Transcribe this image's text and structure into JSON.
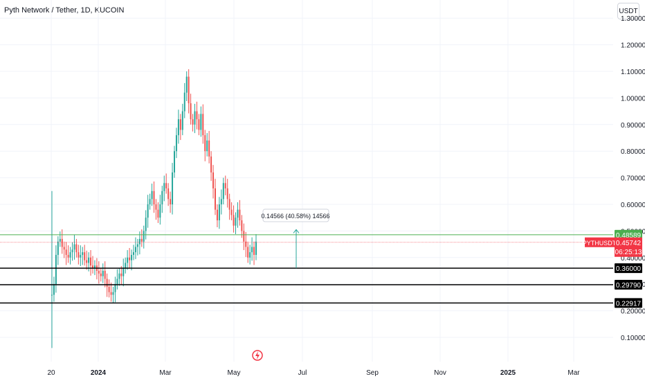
{
  "header": {
    "title": "Pyth Network / Tether, 1D, KUCOIN",
    "currency_button": "USDT"
  },
  "chart_data": {
    "type": "candlestick",
    "symbol": "PYTHUSDT",
    "y_axis_ticks": [
      0.1,
      0.2,
      0.3,
      0.4,
      0.5,
      0.6,
      0.7,
      0.8,
      0.9,
      1.0,
      1.1,
      1.2,
      1.3
    ],
    "y_axis_tick_labels": [
      "0.10000",
      "0.20000",
      "0.30000",
      "0.40000",
      "0.50000",
      "0.60000",
      "0.70000",
      "0.80000",
      "0.90000",
      "1.00000",
      "1.10000",
      "1.20000",
      "1.30000"
    ],
    "x_axis_labels": [
      "20",
      "2024",
      "Mar",
      "May",
      "Jul",
      "Sep",
      "Nov",
      "2025",
      "Mar"
    ],
    "candles_close_path": [
      [
        0,
        0.26
      ],
      [
        1,
        0.3
      ],
      [
        2,
        0.41
      ],
      [
        3,
        0.46
      ],
      [
        4,
        0.47
      ],
      [
        5,
        0.44
      ],
      [
        6,
        0.43
      ],
      [
        7,
        0.41
      ],
      [
        8,
        0.4
      ],
      [
        9,
        0.42
      ],
      [
        10,
        0.43
      ],
      [
        11,
        0.45
      ],
      [
        12,
        0.42
      ],
      [
        13,
        0.4
      ],
      [
        14,
        0.41
      ],
      [
        15,
        0.42
      ],
      [
        16,
        0.39
      ],
      [
        17,
        0.38
      ],
      [
        18,
        0.4
      ],
      [
        19,
        0.37
      ],
      [
        20,
        0.36
      ],
      [
        21,
        0.37
      ],
      [
        22,
        0.35
      ],
      [
        23,
        0.34
      ],
      [
        24,
        0.33
      ],
      [
        25,
        0.35
      ],
      [
        26,
        0.32
      ],
      [
        27,
        0.29
      ],
      [
        28,
        0.27
      ],
      [
        29,
        0.26
      ],
      [
        30,
        0.27
      ],
      [
        31,
        0.3
      ],
      [
        32,
        0.32
      ],
      [
        33,
        0.34
      ],
      [
        34,
        0.33
      ],
      [
        35,
        0.36
      ],
      [
        36,
        0.38
      ],
      [
        37,
        0.4
      ],
      [
        38,
        0.39
      ],
      [
        39,
        0.41
      ],
      [
        40,
        0.42
      ],
      [
        41,
        0.44
      ],
      [
        42,
        0.45
      ],
      [
        43,
        0.47
      ],
      [
        44,
        0.46
      ],
      [
        45,
        0.5
      ],
      [
        46,
        0.55
      ],
      [
        47,
        0.6
      ],
      [
        48,
        0.62
      ],
      [
        49,
        0.65
      ],
      [
        50,
        0.6
      ],
      [
        51,
        0.58
      ],
      [
        52,
        0.55
      ],
      [
        53,
        0.6
      ],
      [
        54,
        0.65
      ],
      [
        55,
        0.68
      ],
      [
        56,
        0.66
      ],
      [
        57,
        0.62
      ],
      [
        58,
        0.6
      ],
      [
        59,
        0.72
      ],
      [
        60,
        0.8
      ],
      [
        61,
        0.86
      ],
      [
        62,
        0.92
      ],
      [
        63,
        0.88
      ],
      [
        64,
        0.95
      ],
      [
        65,
        1.02
      ],
      [
        66,
        1.08
      ],
      [
        67,
        0.98
      ],
      [
        68,
        0.92
      ],
      [
        69,
        0.9
      ],
      [
        70,
        0.95
      ],
      [
        71,
        0.92
      ],
      [
        72,
        0.88
      ],
      [
        73,
        0.94
      ],
      [
        74,
        0.86
      ],
      [
        75,
        0.8
      ],
      [
        76,
        0.84
      ],
      [
        77,
        0.78
      ],
      [
        78,
        0.72
      ],
      [
        79,
        0.66
      ],
      [
        80,
        0.58
      ],
      [
        81,
        0.54
      ],
      [
        82,
        0.6
      ],
      [
        83,
        0.62
      ],
      [
        84,
        0.68
      ],
      [
        85,
        0.66
      ],
      [
        86,
        0.62
      ],
      [
        87,
        0.58
      ],
      [
        88,
        0.56
      ],
      [
        89,
        0.52
      ],
      [
        90,
        0.55
      ],
      [
        91,
        0.58
      ],
      [
        92,
        0.54
      ],
      [
        93,
        0.5
      ],
      [
        94,
        0.46
      ],
      [
        95,
        0.44
      ],
      [
        96,
        0.4
      ],
      [
        97,
        0.42
      ],
      [
        98,
        0.44
      ],
      [
        99,
        0.41
      ],
      [
        100,
        0.46
      ]
    ],
    "price_lines": [
      {
        "value": 0.36,
        "label": "0.36000",
        "color": "#000000"
      },
      {
        "value": 0.2979,
        "label": "0.29790",
        "color": "#000000"
      },
      {
        "value": 0.22917,
        "label": "0.22917",
        "color": "#000000"
      },
      {
        "value": 0.48589,
        "label": "0.48589",
        "color": "#4caf50"
      }
    ],
    "last_price": {
      "symbol": "PYTHUSDT",
      "value": "0.45742",
      "countdown": "06:25:13",
      "color": "#f23645"
    },
    "measure_annotation": "0.14566 (40.58%) 14566",
    "colors": {
      "up": "#26a69a",
      "down": "#ef5350",
      "grid": "#f0f3fa",
      "axis_text": "#131722"
    }
  }
}
